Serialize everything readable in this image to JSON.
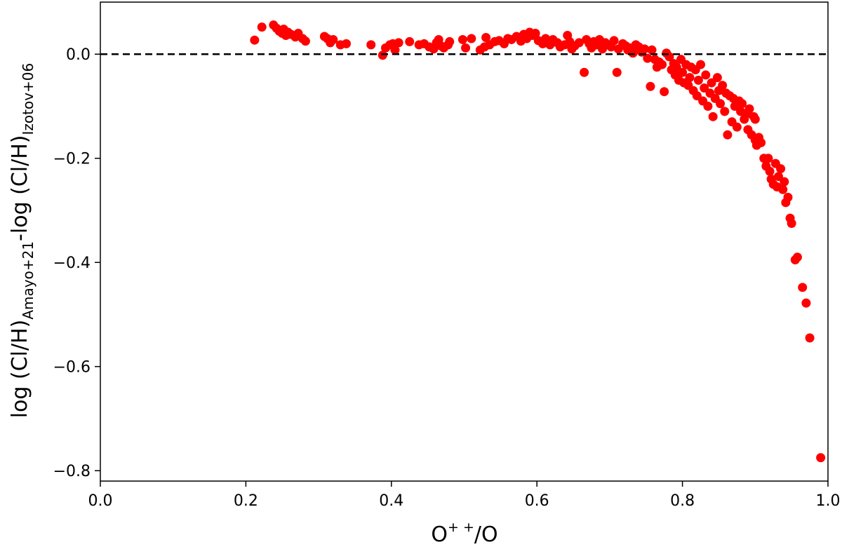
{
  "chart_data": {
    "type": "scatter",
    "title": "",
    "xlabel": {
      "base": "O",
      "sup": "+ +",
      "rest": "/O"
    },
    "ylabel": {
      "part1": "log (Cl/H)",
      "sub1": "Amayo+21",
      "part2": "-log (Cl/H)",
      "sub2": "Izotov+06"
    },
    "xlim": [
      0.0,
      1.0
    ],
    "ylim": [
      -0.82,
      0.1
    ],
    "xticks": [
      0.0,
      0.2,
      0.4,
      0.6,
      0.8,
      1.0
    ],
    "xtick_labels": [
      "0.0",
      "0.2",
      "0.4",
      "0.6",
      "0.8",
      "1.0"
    ],
    "yticks": [
      0.0,
      -0.2,
      -0.4,
      -0.6,
      -0.8
    ],
    "ytick_labels": [
      "0.0",
      "−0.2",
      "−0.4",
      "−0.6",
      "−0.8"
    ],
    "grid": false,
    "reference_line": {
      "y": 0.0,
      "style": "dashed",
      "color": "#000000"
    },
    "marker_color": "#ff0000",
    "x": [
      0.212,
      0.222,
      0.238,
      0.242,
      0.246,
      0.25,
      0.252,
      0.255,
      0.258,
      0.262,
      0.268,
      0.272,
      0.278,
      0.282,
      0.308,
      0.312,
      0.316,
      0.32,
      0.33,
      0.338,
      0.372,
      0.388,
      0.392,
      0.398,
      0.402,
      0.405,
      0.41,
      0.425,
      0.438,
      0.445,
      0.452,
      0.458,
      0.462,
      0.465,
      0.468,
      0.472,
      0.478,
      0.48,
      0.498,
      0.502,
      0.51,
      0.522,
      0.528,
      0.53,
      0.535,
      0.542,
      0.548,
      0.555,
      0.56,
      0.565,
      0.572,
      0.578,
      0.582,
      0.586,
      0.59,
      0.594,
      0.598,
      0.602,
      0.608,
      0.612,
      0.618,
      0.622,
      0.628,
      0.632,
      0.638,
      0.642,
      0.645,
      0.648,
      0.652,
      0.658,
      0.665,
      0.668,
      0.672,
      0.675,
      0.678,
      0.682,
      0.686,
      0.69,
      0.694,
      0.698,
      0.702,
      0.706,
      0.71,
      0.712,
      0.718,
      0.722,
      0.725,
      0.728,
      0.732,
      0.736,
      0.74,
      0.744,
      0.748,
      0.752,
      0.756,
      0.758,
      0.762,
      0.765,
      0.768,
      0.772,
      0.775,
      0.778,
      0.782,
      0.785,
      0.788,
      0.79,
      0.792,
      0.795,
      0.798,
      0.8,
      0.802,
      0.805,
      0.808,
      0.81,
      0.812,
      0.815,
      0.818,
      0.82,
      0.822,
      0.825,
      0.828,
      0.83,
      0.832,
      0.835,
      0.838,
      0.84,
      0.842,
      0.845,
      0.848,
      0.85,
      0.852,
      0.855,
      0.858,
      0.86,
      0.862,
      0.865,
      0.868,
      0.87,
      0.872,
      0.875,
      0.878,
      0.88,
      0.882,
      0.885,
      0.888,
      0.89,
      0.892,
      0.895,
      0.898,
      0.9,
      0.9,
      0.902,
      0.905,
      0.908,
      0.912,
      0.915,
      0.918,
      0.92,
      0.922,
      0.925,
      0.928,
      0.93,
      0.932,
      0.935,
      0.938,
      0.94,
      0.942,
      0.945,
      0.948,
      0.95,
      0.955,
      0.958,
      0.965,
      0.97,
      0.975,
      0.99
    ],
    "y": [
      0.027,
      0.052,
      0.056,
      0.05,
      0.044,
      0.04,
      0.048,
      0.036,
      0.042,
      0.038,
      0.033,
      0.04,
      0.03,
      0.025,
      0.034,
      0.03,
      0.022,
      0.028,
      0.018,
      0.02,
      0.018,
      -0.002,
      0.012,
      0.018,
      0.02,
      0.008,
      0.022,
      0.024,
      0.018,
      0.02,
      0.014,
      0.01,
      0.022,
      0.028,
      0.016,
      0.012,
      0.018,
      0.024,
      0.028,
      0.012,
      0.03,
      0.008,
      0.014,
      0.032,
      0.018,
      0.024,
      0.026,
      0.02,
      0.03,
      0.028,
      0.034,
      0.025,
      0.038,
      0.03,
      0.042,
      0.036,
      0.04,
      0.026,
      0.02,
      0.03,
      0.018,
      0.028,
      0.022,
      0.014,
      0.018,
      0.036,
      0.024,
      0.01,
      0.016,
      0.022,
      -0.035,
      0.028,
      0.02,
      0.012,
      0.024,
      0.018,
      0.028,
      0.01,
      0.022,
      0.018,
      0.014,
      0.026,
      -0.035,
      0.01,
      0.02,
      0.016,
      0.008,
      0.012,
      0.002,
      0.018,
      0.014,
      0.004,
      0.01,
      -0.008,
      -0.062,
      0.008,
      -0.01,
      -0.025,
      -0.015,
      -0.02,
      -0.072,
      0.002,
      -0.005,
      -0.03,
      -0.018,
      -0.04,
      -0.025,
      -0.05,
      -0.01,
      -0.035,
      -0.055,
      -0.02,
      -0.06,
      -0.045,
      -0.025,
      -0.07,
      -0.03,
      -0.08,
      -0.05,
      -0.02,
      -0.09,
      -0.065,
      -0.04,
      -0.1,
      -0.075,
      -0.055,
      -0.12,
      -0.085,
      -0.045,
      -0.07,
      -0.095,
      -0.06,
      -0.11,
      -0.075,
      -0.155,
      -0.08,
      -0.13,
      -0.085,
      -0.1,
      -0.14,
      -0.09,
      -0.11,
      -0.095,
      -0.125,
      -0.115,
      -0.145,
      -0.105,
      -0.155,
      -0.12,
      -0.165,
      -0.125,
      -0.175,
      -0.16,
      -0.17,
      -0.2,
      -0.215,
      -0.2,
      -0.225,
      -0.24,
      -0.25,
      -0.21,
      -0.255,
      -0.235,
      -0.22,
      -0.26,
      -0.245,
      -0.285,
      -0.275,
      -0.315,
      -0.325,
      -0.395,
      -0.39,
      -0.448,
      -0.478,
      -0.545,
      -0.775
    ]
  }
}
